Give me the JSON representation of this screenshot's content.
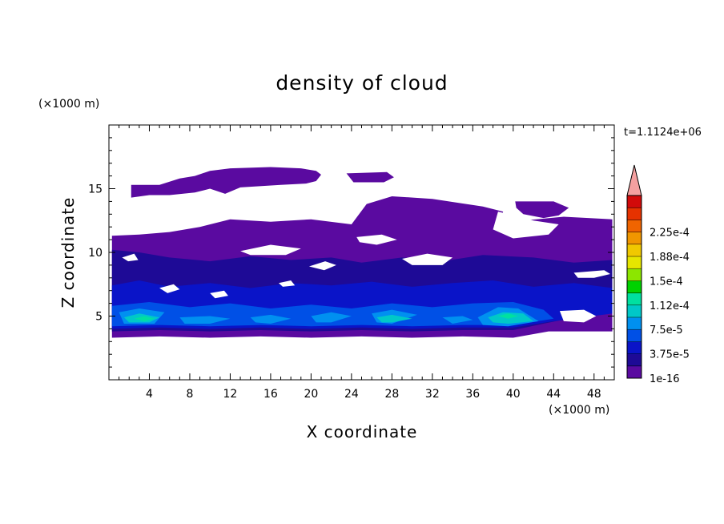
{
  "chart_data": {
    "type": "heatmap",
    "title": "density of cloud",
    "xlabel": "X coordinate",
    "ylabel": "Z coordinate",
    "x_unit": "(×1000 m)",
    "y_unit": "(×1000 m)",
    "time_label": "t=1.1124e+06",
    "xlim": [
      0,
      50
    ],
    "ylim": [
      0,
      20
    ],
    "x_ticks": [
      4,
      8,
      12,
      16,
      20,
      24,
      28,
      32,
      36,
      40,
      44,
      48
    ],
    "y_ticks": [
      5,
      10,
      15
    ],
    "grid": false,
    "colorbar": {
      "labels": [
        "1e-16",
        "3.75e-5",
        "7.5e-5",
        "1.12e-4",
        "1.5e-4",
        "1.88e-4",
        "2.25e-4"
      ],
      "colors": [
        "#5a0aa0",
        "#1e0a96",
        "#0a14c8",
        "#0050e6",
        "#0090f0",
        "#00c8c8",
        "#00e0a0",
        "#00d200",
        "#8ce600",
        "#e6e600",
        "#f0c800",
        "#f09600",
        "#f06400",
        "#e63200",
        "#d20a0a"
      ],
      "extend_color": "#f4a0a0"
    },
    "fields": [
      {
        "level": 1,
        "polygons": [
          [
            [
              0.3,
              11.3
            ],
            [
              3,
              11.4
            ],
            [
              6,
              11.6
            ],
            [
              9,
              12.0
            ],
            [
              12,
              12.6
            ],
            [
              16,
              12.4
            ],
            [
              20,
              12.6
            ],
            [
              24,
              12.2
            ],
            [
              25.5,
              13.8
            ],
            [
              28,
              14.4
            ],
            [
              32,
              14.2
            ],
            [
              37,
              13.6
            ],
            [
              39,
              13.2
            ],
            [
              38.5,
              11.9
            ],
            [
              41,
              12.5
            ],
            [
              45,
              12.8
            ],
            [
              49.8,
              12.6
            ],
            [
              49.8,
              3.8
            ],
            [
              43.5,
              3.8
            ],
            [
              40,
              3.3
            ],
            [
              35,
              3.4
            ],
            [
              30,
              3.3
            ],
            [
              25,
              3.4
            ],
            [
              20,
              3.3
            ],
            [
              15,
              3.4
            ],
            [
              10,
              3.3
            ],
            [
              5,
              3.4
            ],
            [
              0.3,
              3.3
            ]
          ],
          [
            [
              2.2,
              15.3
            ],
            [
              5,
              15.3
            ],
            [
              7,
              15.8
            ],
            [
              8.5,
              16.0
            ],
            [
              10,
              16.4
            ],
            [
              12,
              16.6
            ],
            [
              16,
              16.7
            ],
            [
              19,
              16.6
            ],
            [
              20.5,
              16.4
            ],
            [
              21,
              16.1
            ],
            [
              20.5,
              15.6
            ],
            [
              19.5,
              15.4
            ],
            [
              17,
              15.3
            ],
            [
              13,
              15.1
            ],
            [
              11.5,
              14.6
            ],
            [
              10,
              15.0
            ],
            [
              8.5,
              14.7
            ],
            [
              6,
              14.5
            ],
            [
              4,
              14.5
            ],
            [
              2.2,
              14.3
            ]
          ],
          [
            [
              23.5,
              16.2
            ],
            [
              27.5,
              16.3
            ],
            [
              28.2,
              15.9
            ],
            [
              27.2,
              15.5
            ],
            [
              24.2,
              15.5
            ]
          ],
          [
            [
              40.2,
              14.0
            ],
            [
              44,
              14.0
            ],
            [
              45.5,
              13.5
            ],
            [
              44.5,
              12.9
            ],
            [
              43,
              12.7
            ],
            [
              41,
              13.0
            ],
            [
              40.3,
              13.5
            ]
          ]
        ]
      },
      {
        "level": 2,
        "polygons": [
          [
            [
              0.3,
              10.2
            ],
            [
              3,
              10.0
            ],
            [
              6,
              9.6
            ],
            [
              10,
              9.3
            ],
            [
              14,
              9.7
            ],
            [
              18,
              9.4
            ],
            [
              22,
              9.6
            ],
            [
              25,
              9.2
            ],
            [
              29,
              9.6
            ],
            [
              33,
              9.3
            ],
            [
              37,
              9.8
            ],
            [
              42,
              9.6
            ],
            [
              46,
              9.2
            ],
            [
              49.8,
              9.4
            ],
            [
              49.8,
              5.5
            ],
            [
              43,
              4.4
            ],
            [
              40,
              3.9
            ],
            [
              35,
              3.9
            ],
            [
              30,
              3.8
            ],
            [
              25,
              3.9
            ],
            [
              20,
              3.8
            ],
            [
              15,
              3.9
            ],
            [
              10,
              3.8
            ],
            [
              5,
              3.9
            ],
            [
              0.3,
              3.8
            ]
          ]
        ]
      },
      {
        "level": 3,
        "polygons": [
          [
            [
              0.3,
              7.4
            ],
            [
              3,
              7.8
            ],
            [
              6,
              7.3
            ],
            [
              10,
              7.6
            ],
            [
              14,
              7.2
            ],
            [
              18,
              7.6
            ],
            [
              22,
              7.4
            ],
            [
              26,
              7.7
            ],
            [
              30,
              7.3
            ],
            [
              34,
              7.6
            ],
            [
              38,
              7.8
            ],
            [
              42,
              7.3
            ],
            [
              46,
              7.6
            ],
            [
              49.8,
              7.2
            ],
            [
              49.8,
              5.2
            ],
            [
              44,
              4.6
            ],
            [
              40,
              4.1
            ],
            [
              35,
              4.1
            ],
            [
              30,
              4.0
            ],
            [
              25,
              4.1
            ],
            [
              20,
              4.0
            ],
            [
              15,
              4.1
            ],
            [
              10,
              4.0
            ],
            [
              5,
              4.1
            ],
            [
              0.3,
              4.0
            ]
          ]
        ]
      },
      {
        "level": 4,
        "polygons": [
          [
            [
              0.3,
              5.8
            ],
            [
              4,
              6.1
            ],
            [
              8,
              5.7
            ],
            [
              12,
              6.0
            ],
            [
              16,
              5.6
            ],
            [
              20,
              5.9
            ],
            [
              24,
              5.6
            ],
            [
              28,
              6.0
            ],
            [
              32,
              5.7
            ],
            [
              36,
              6.0
            ],
            [
              40,
              6.1
            ],
            [
              43,
              5.5
            ],
            [
              44,
              4.8
            ],
            [
              40,
              4.3
            ],
            [
              35,
              4.3
            ],
            [
              30,
              4.2
            ],
            [
              25,
              4.3
            ],
            [
              20,
              4.2
            ],
            [
              15,
              4.3
            ],
            [
              10,
              4.2
            ],
            [
              5,
              4.3
            ],
            [
              0.3,
              4.2
            ]
          ]
        ]
      },
      {
        "level": 5,
        "polygons": [
          [
            [
              1,
              5.3
            ],
            [
              3,
              5.6
            ],
            [
              5.5,
              5.3
            ],
            [
              4.5,
              4.4
            ],
            [
              1.5,
              4.4
            ]
          ],
          [
            [
              7,
              4.9
            ],
            [
              10,
              5.0
            ],
            [
              12,
              4.8
            ],
            [
              10,
              4.4
            ],
            [
              7.5,
              4.4
            ]
          ],
          [
            [
              14,
              4.9
            ],
            [
              16,
              5.1
            ],
            [
              18,
              4.8
            ],
            [
              16,
              4.4
            ],
            [
              14.5,
              4.5
            ]
          ],
          [
            [
              20,
              5.0
            ],
            [
              22,
              5.3
            ],
            [
              24,
              5.0
            ],
            [
              22,
              4.5
            ],
            [
              20.5,
              4.5
            ]
          ],
          [
            [
              26,
              5.2
            ],
            [
              28,
              5.5
            ],
            [
              30.5,
              5.1
            ],
            [
              28,
              4.4
            ],
            [
              26.5,
              4.5
            ]
          ],
          [
            [
              33,
              4.9
            ],
            [
              35,
              5.0
            ],
            [
              36,
              4.7
            ],
            [
              34,
              4.4
            ]
          ],
          [
            [
              36.5,
              4.9
            ],
            [
              38.5,
              5.7
            ],
            [
              40.5,
              5.6
            ],
            [
              42.5,
              4.6
            ],
            [
              39.5,
              4.2
            ],
            [
              37,
              4.3
            ]
          ]
        ]
      },
      {
        "level": 6,
        "polygons": [
          [
            [
              1.5,
              4.9
            ],
            [
              3,
              5.2
            ],
            [
              5,
              4.9
            ],
            [
              4,
              4.5
            ],
            [
              2,
              4.5
            ]
          ],
          [
            [
              26.5,
              4.9
            ],
            [
              28,
              5.1
            ],
            [
              30,
              4.8
            ],
            [
              28,
              4.5
            ],
            [
              27,
              4.5
            ]
          ],
          [
            [
              37.5,
              4.9
            ],
            [
              39,
              5.3
            ],
            [
              41,
              5.2
            ],
            [
              42,
              4.6
            ],
            [
              39.5,
              4.4
            ],
            [
              38,
              4.5
            ]
          ]
        ]
      },
      {
        "level": 7,
        "polygons": [
          [
            [
              2.5,
              4.8
            ],
            [
              3.5,
              5.0
            ],
            [
              4.5,
              4.8
            ],
            [
              3.5,
              4.6
            ]
          ],
          [
            [
              38.5,
              5.0
            ],
            [
              39.5,
              5.2
            ],
            [
              40.5,
              5.0
            ],
            [
              39.5,
              4.8
            ]
          ]
        ]
      },
      {
        "level": 0,
        "polygons": [
          [
            [
              21.5,
              14.7
            ],
            [
              25,
              14.7
            ],
            [
              26.5,
              14.2
            ],
            [
              24,
              13.8
            ],
            [
              22,
              13.9
            ],
            [
              21,
              14.3
            ]
          ],
          [
            [
              38.5,
              13.2
            ],
            [
              42,
              12.5
            ],
            [
              44.5,
              12.2
            ],
            [
              43.5,
              11.4
            ],
            [
              40,
              11.1
            ],
            [
              38,
              11.8
            ]
          ],
          [
            [
              24.5,
              11.2
            ],
            [
              27,
              11.4
            ],
            [
              28.5,
              11.0
            ],
            [
              26.5,
              10.6
            ],
            [
              24.8,
              10.8
            ]
          ],
          [
            [
              13,
              10.1
            ],
            [
              16,
              10.6
            ],
            [
              19,
              10.3
            ],
            [
              17.5,
              9.8
            ],
            [
              14,
              9.8
            ]
          ],
          [
            [
              1.3,
              9.6
            ],
            [
              2.5,
              9.9
            ],
            [
              2.9,
              9.4
            ],
            [
              1.9,
              9.3
            ]
          ],
          [
            [
              29,
              9.5
            ],
            [
              31.5,
              9.9
            ],
            [
              34,
              9.6
            ],
            [
              33,
              9.0
            ],
            [
              30,
              9.0
            ]
          ],
          [
            [
              19.8,
              8.9
            ],
            [
              21.4,
              9.3
            ],
            [
              22.5,
              9.0
            ],
            [
              21.3,
              8.6
            ]
          ],
          [
            [
              46,
              8.4
            ],
            [
              49,
              8.6
            ],
            [
              49.6,
              8.3
            ],
            [
              48,
              8.0
            ],
            [
              46.4,
              8.0
            ]
          ],
          [
            [
              16.8,
              7.6
            ],
            [
              18,
              7.8
            ],
            [
              18.4,
              7.4
            ],
            [
              17.2,
              7.3
            ]
          ],
          [
            [
              5,
              7.2
            ],
            [
              6.4,
              7.5
            ],
            [
              7,
              7.1
            ],
            [
              5.8,
              6.8
            ]
          ],
          [
            [
              10,
              6.8
            ],
            [
              11.4,
              7.0
            ],
            [
              11.8,
              6.6
            ],
            [
              10.5,
              6.4
            ]
          ],
          [
            [
              44.6,
              5.4
            ],
            [
              47,
              5.5
            ],
            [
              48.2,
              5.0
            ],
            [
              47,
              4.5
            ],
            [
              45,
              4.6
            ]
          ]
        ]
      }
    ]
  }
}
